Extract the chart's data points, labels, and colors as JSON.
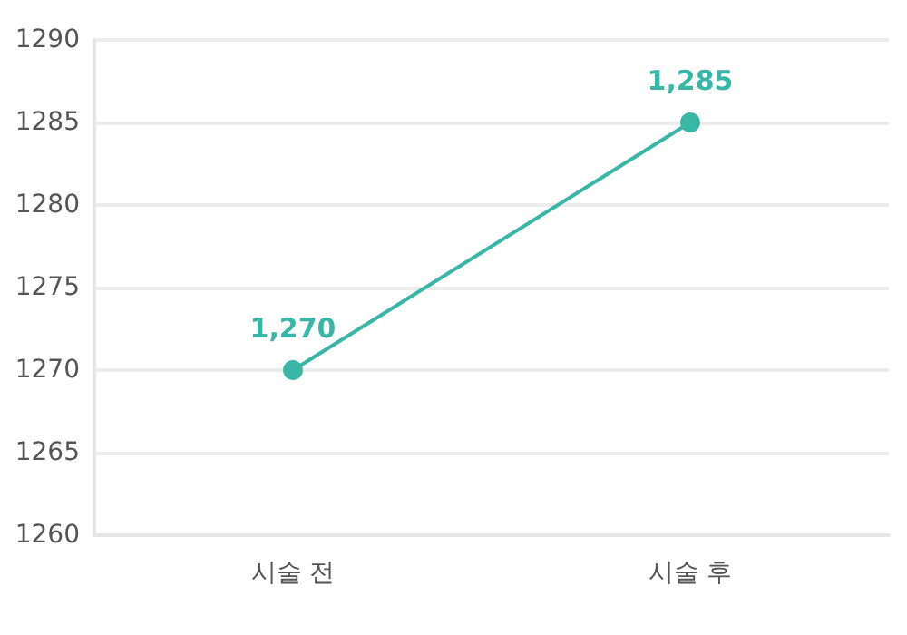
{
  "chart_data": {
    "type": "line",
    "categories": [
      "시술 전",
      "시술 후"
    ],
    "series": [
      {
        "color": "#38b6a6",
        "values": [
          1270,
          1285
        ],
        "value_labels": [
          "1,270",
          "1,285"
        ]
      }
    ],
    "ylim": [
      1260,
      1290
    ],
    "yticks": [
      1260,
      1265,
      1270,
      1275,
      1280,
      1285,
      1290
    ],
    "grid": "y",
    "marker": "circle",
    "line_style": "solid"
  }
}
